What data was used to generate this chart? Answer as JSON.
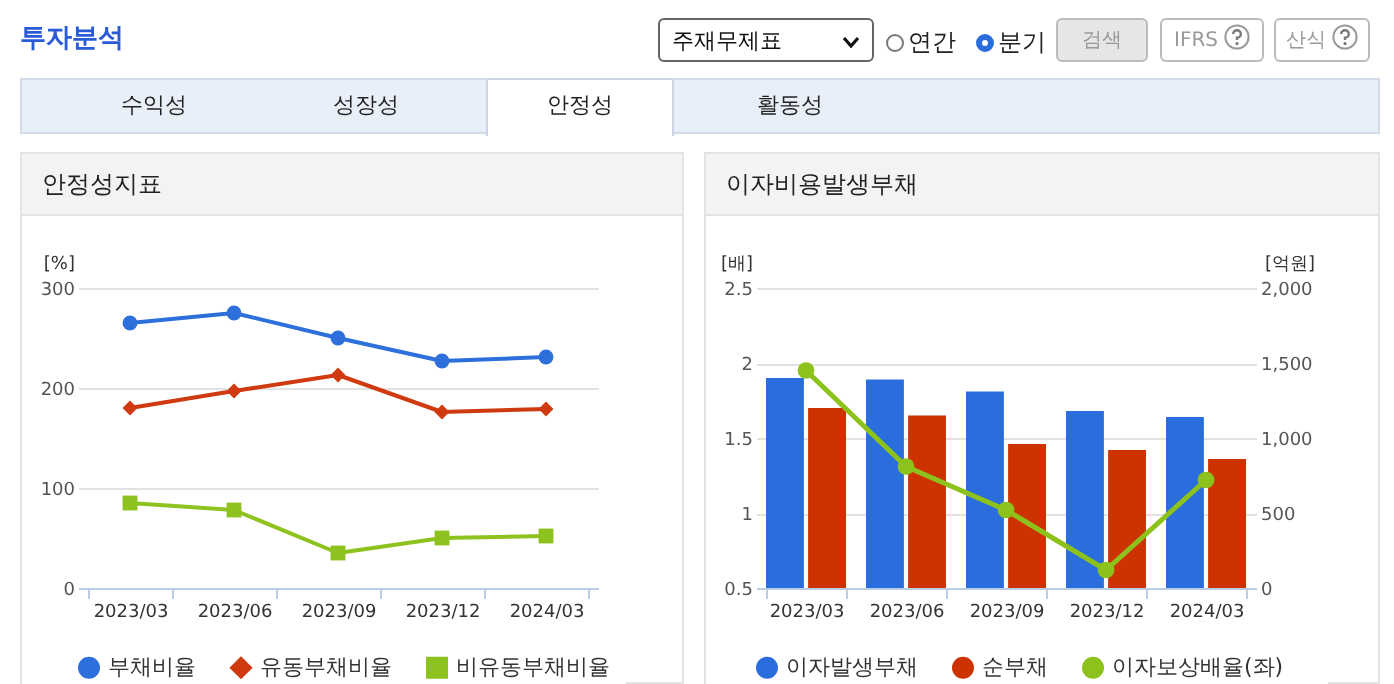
{
  "chart_data": [
    {
      "type": "other",
      "title": "투자분석",
      "annotations": [
        "주재무제표",
        "연간",
        "분기",
        "검색",
        "IFRS",
        "산식",
        "수익성",
        "성장성",
        "안정성",
        "활동성"
      ]
    },
    {
      "type": "line",
      "title": "안정성지표",
      "ylabel": "[%]",
      "categories": [
        "2023/03",
        "2023/06",
        "2023/09",
        "2023/12",
        "2024/03"
      ],
      "ylim": [
        0,
        300
      ],
      "yticks": [
        0,
        100,
        200,
        300
      ],
      "grid": "y",
      "legend": "bottom",
      "line_style": "solid",
      "series": [
        {
          "name": "부채비율",
          "color": "#2d6fdb",
          "marker": "circle",
          "values": [
            265,
            275,
            250,
            227,
            231
          ]
        },
        {
          "name": "유동부채비율",
          "color": "#d03a10",
          "marker": "diamond",
          "values": [
            180,
            197,
            213,
            176,
            179
          ]
        },
        {
          "name": "비유동부채비율",
          "color": "#8dc21f",
          "marker": "square",
          "values": [
            85,
            78,
            35,
            50,
            52
          ]
        }
      ]
    },
    {
      "type": "bar",
      "title": "이자비용발생부채",
      "ylabel": "[배]",
      "y2label": "[억원]",
      "categories": [
        "2023/03",
        "2023/06",
        "2023/09",
        "2023/12",
        "2024/03"
      ],
      "ylim": [
        0.5,
        2.5
      ],
      "yticks": [
        0.5,
        1,
        1.5,
        2,
        2.5
      ],
      "y2lim": [
        0,
        2000
      ],
      "y2ticks": [
        0,
        500,
        {
          "value": 1000,
          "label": "1,000"
        },
        {
          "value": 1500,
          "label": "1,500"
        },
        {
          "value": 2000,
          "label": "2,000"
        }
      ],
      "grid": "y",
      "legend": "bottom",
      "series": [
        {
          "name": "이자발생부채",
          "color": "#2a6ddc",
          "axis": "y2",
          "values": [
            1400,
            1390,
            1310,
            1180,
            1140
          ]
        },
        {
          "name": "순부채",
          "color": "#cc3300",
          "axis": "y2",
          "values": [
            1200,
            1150,
            960,
            920,
            860
          ]
        },
        {
          "name": "이자보상배율(좌)",
          "type": "line",
          "color": "#8cc21b",
          "marker": "circle",
          "line_style": "solid",
          "axis": "y",
          "values": [
            1.95,
            1.31,
            1.02,
            0.62,
            1.22
          ]
        }
      ]
    }
  ]
}
